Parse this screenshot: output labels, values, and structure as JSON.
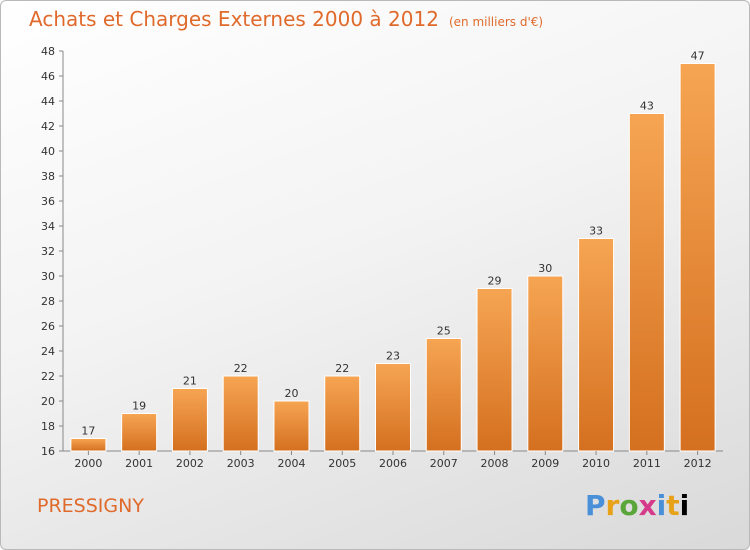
{
  "header": {
    "title": "Achats et Charges Externes 2000 à 2012",
    "subtitle": "(en milliers d'€)"
  },
  "footer": {
    "commune": "PRESSIGNY",
    "logo": "Proxiti"
  },
  "colors": {
    "title": "#e06a2c",
    "bar_light": "#f6a553",
    "bar_dark": "#d4701f"
  },
  "chart_data": {
    "type": "bar",
    "title": "Achats et Charges Externes 2000 à 2012",
    "subtitle": "(en milliers d'€)",
    "categories": [
      "2000",
      "2001",
      "2002",
      "2003",
      "2004",
      "2005",
      "2006",
      "2007",
      "2008",
      "2009",
      "2010",
      "2011",
      "2012"
    ],
    "values": [
      17,
      19,
      21,
      22,
      20,
      22,
      23,
      25,
      29,
      30,
      33,
      43,
      47
    ],
    "ylim": [
      16,
      48
    ],
    "yticks": [
      16,
      18,
      20,
      22,
      24,
      26,
      28,
      30,
      32,
      34,
      36,
      38,
      40,
      42,
      44,
      46,
      48
    ],
    "grid": false,
    "data_labels": true
  }
}
